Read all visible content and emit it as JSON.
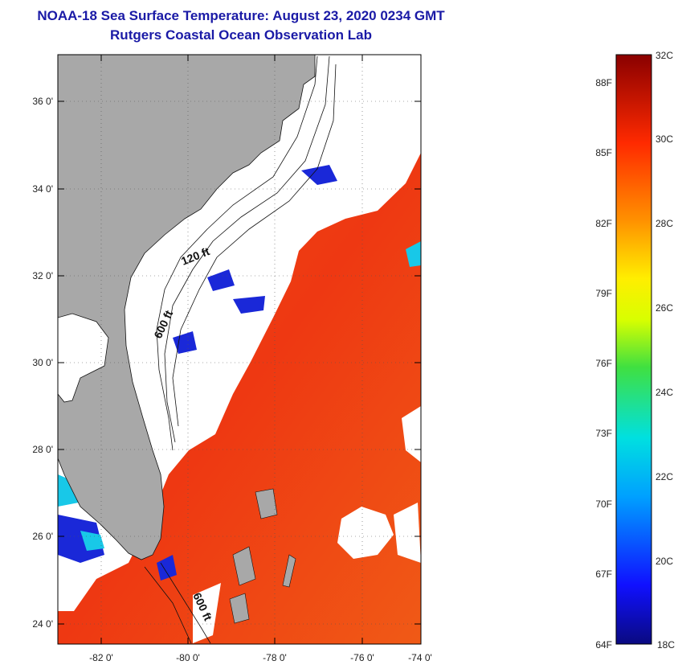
{
  "header": {
    "title": "NOAA-18 Sea Surface Temperature:  August 23, 2020 0234 GMT",
    "subtitle": "Rutgers Coastal Ocean Observation Lab"
  },
  "map": {
    "lat_labels": [
      "36 0'",
      "34 0'",
      "32 0'",
      "30 0'",
      "28 0'",
      "26 0'",
      "24 0'"
    ],
    "lon_labels": [
      "-82 0'",
      "-80 0'",
      "-78 0'",
      "-76 0'",
      "-74 0'"
    ],
    "contour_labels": [
      "120 ft",
      "600 ft",
      "600 ft"
    ]
  },
  "colorbar": {
    "celsius_labels": [
      "32C",
      "30C",
      "28C",
      "26C",
      "24C",
      "22C",
      "20C",
      "18C"
    ],
    "fahrenheit_labels": [
      "88F",
      "85F",
      "82F",
      "79F",
      "76F",
      "73F",
      "70F",
      "67F",
      "64F"
    ]
  },
  "colors": {
    "title": "#1a1aa6",
    "land": "#a8a8a8",
    "ocean_warm": "#ee3a10",
    "cloud": "#ffffff"
  }
}
